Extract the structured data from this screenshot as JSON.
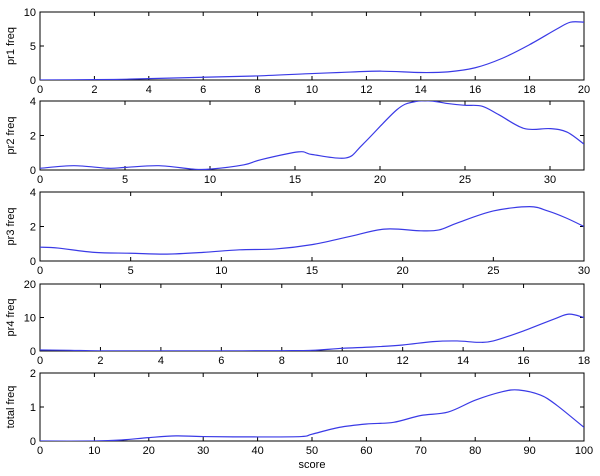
{
  "chart_data": [
    {
      "type": "line",
      "title": "",
      "xlabel": "",
      "ylabel": "pr1 freq",
      "xlim": [
        0,
        20
      ],
      "ylim": [
        0,
        10
      ],
      "xticks": [
        0,
        2,
        4,
        6,
        8,
        10,
        12,
        14,
        16,
        18,
        20
      ],
      "yticks": [
        0,
        5,
        10
      ],
      "series": [
        {
          "color": "#3a3ae6",
          "x": [
            0,
            2,
            3,
            4,
            6,
            8,
            10,
            11,
            12.5,
            14,
            15,
            16,
            17,
            18,
            19,
            19.5,
            20
          ],
          "y": [
            0,
            0.05,
            0.1,
            0.2,
            0.4,
            0.6,
            0.95,
            1.1,
            1.3,
            1.1,
            1.2,
            1.8,
            3.2,
            5.2,
            7.5,
            8.5,
            8.5
          ]
        }
      ]
    },
    {
      "type": "line",
      "title": "",
      "xlabel": "",
      "ylabel": "pr2 freq",
      "xlim": [
        0,
        32
      ],
      "ylim": [
        0,
        4
      ],
      "xticks": [
        0,
        5,
        10,
        15,
        20,
        25,
        30
      ],
      "yticks": [
        0,
        2,
        4
      ],
      "series": [
        {
          "color": "#3a3ae6",
          "x": [
            0,
            2,
            4,
            5,
            7,
            9,
            10,
            12,
            13,
            15.2,
            16,
            18,
            19,
            21,
            22,
            23,
            24,
            25,
            26,
            27,
            28.5,
            30,
            31,
            32
          ],
          "y": [
            0.1,
            0.25,
            0.1,
            0.15,
            0.25,
            0.05,
            0.05,
            0.3,
            0.6,
            1.05,
            0.9,
            0.7,
            1.5,
            3.5,
            3.95,
            4.0,
            3.85,
            3.75,
            3.7,
            3.2,
            2.4,
            2.4,
            2.2,
            1.5
          ]
        }
      ]
    },
    {
      "type": "line",
      "title": "",
      "xlabel": "",
      "ylabel": "pr3 freq",
      "xlim": [
        0,
        30
      ],
      "ylim": [
        0,
        4
      ],
      "xticks": [
        0,
        5,
        10,
        15,
        20,
        25,
        30
      ],
      "yticks": [
        0,
        2,
        4
      ],
      "series": [
        {
          "color": "#3a3ae6",
          "x": [
            0,
            1,
            3,
            5,
            7,
            9,
            11,
            13,
            15,
            17,
            19,
            21,
            22,
            23,
            25,
            27,
            28,
            29,
            30
          ],
          "y": [
            0.8,
            0.75,
            0.5,
            0.45,
            0.4,
            0.5,
            0.65,
            0.7,
            0.95,
            1.4,
            1.85,
            1.75,
            1.8,
            2.2,
            2.9,
            3.15,
            2.9,
            2.5,
            2.0
          ]
        }
      ]
    },
    {
      "type": "line",
      "title": "",
      "xlabel": "",
      "ylabel": "pr4 freq",
      "xlim": [
        0,
        18
      ],
      "ylim": [
        0,
        20
      ],
      "xticks": [
        0,
        2,
        4,
        6,
        8,
        10,
        12,
        14,
        16,
        18
      ],
      "yticks": [
        0,
        10,
        20
      ],
      "series": [
        {
          "color": "#3a3ae6",
          "x": [
            0,
            1,
            2,
            4,
            6,
            8,
            9,
            10,
            11,
            12,
            13,
            13.8,
            14.5,
            15,
            16,
            17,
            17.5,
            18
          ],
          "y": [
            0.3,
            0.2,
            0.05,
            0.05,
            0.05,
            0.1,
            0.2,
            0.8,
            1.2,
            1.8,
            2.8,
            3.0,
            2.6,
            3.0,
            6.0,
            9.5,
            11.0,
            10.0
          ]
        }
      ]
    },
    {
      "type": "line",
      "title": "",
      "xlabel": "score",
      "ylabel": "total freq",
      "xlim": [
        0,
        100
      ],
      "ylim": [
        0,
        2
      ],
      "xticks": [
        0,
        10,
        20,
        30,
        40,
        50,
        60,
        70,
        80,
        90,
        100
      ],
      "yticks": [
        0,
        1,
        2
      ],
      "series": [
        {
          "color": "#3a3ae6",
          "x": [
            0,
            10,
            15,
            20,
            25,
            30,
            40,
            48,
            50,
            55,
            60,
            65,
            70,
            75,
            80,
            85,
            88,
            92,
            95,
            100
          ],
          "y": [
            0,
            0,
            0.03,
            0.1,
            0.15,
            0.13,
            0.12,
            0.13,
            0.2,
            0.4,
            0.5,
            0.55,
            0.75,
            0.85,
            1.2,
            1.45,
            1.5,
            1.35,
            1.05,
            0.4
          ]
        }
      ]
    }
  ]
}
